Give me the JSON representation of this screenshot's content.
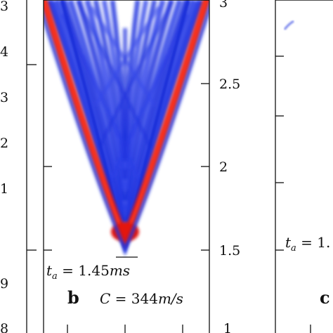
{
  "panels": {
    "left_cut": {
      "visible_tick_labels": [
        "3",
        "4",
        "3",
        "2",
        "1",
        "9",
        "8"
      ]
    },
    "b": {
      "label": "b",
      "ta_text": "t",
      "ta_sub": "a",
      "ta_value": " = 1.45",
      "ta_unit": "ms",
      "c_text": "C",
      "c_value": " = 344",
      "c_unit": "m/s"
    },
    "c": {
      "label": "c",
      "ta_text": "t",
      "ta_sub": "a",
      "ta_value": " = 1."
    }
  },
  "chart_data": [
    {
      "type": "heatmap",
      "panel": "b",
      "description_of_colors": {
        "low": "#ffffff",
        "mid": "#1a2ee0",
        "high": "#e01010"
      },
      "y_axis": {
        "ticks": [
          1,
          1.5,
          2,
          2.5,
          3
        ],
        "tick_labels": [
          "1",
          "1.5",
          "2",
          "2.5",
          "3"
        ],
        "ylim": [
          1,
          3
        ]
      },
      "arrival_time_ms": 1.45,
      "sound_speed_m_s": 344
    }
  ],
  "colors": {
    "blue": "#1f35e6",
    "red": "#e81a12",
    "axis": "#111111"
  }
}
